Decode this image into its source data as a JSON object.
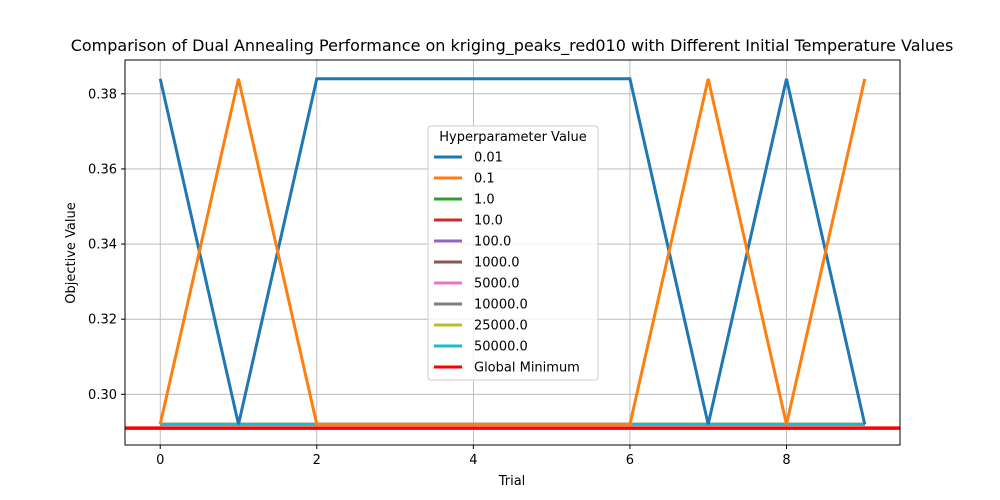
{
  "chart_data": {
    "type": "line",
    "title": "Comparison of Dual Annealing Performance on kriging_peaks_red010 with Different Initial Temperature Values",
    "xlabel": "Trial",
    "ylabel": "Objective Value",
    "xlim": [
      -0.45,
      9.45
    ],
    "ylim": [
      0.2865,
      0.389
    ],
    "xticks": [
      0,
      2,
      4,
      6,
      8
    ],
    "yticks": [
      0.3,
      0.32,
      0.34,
      0.36,
      0.38
    ],
    "ytick_labels": [
      "0.30",
      "0.32",
      "0.34",
      "0.36",
      "0.38"
    ],
    "grid": true,
    "legend_title": "Hyperparameter Value",
    "legend_position": "center",
    "x": [
      0,
      1,
      2,
      3,
      4,
      5,
      6,
      7,
      8,
      9
    ],
    "series": [
      {
        "name": "0.01",
        "color": "#1f77b4",
        "values": [
          0.384,
          0.292,
          0.384,
          0.384,
          0.384,
          0.384,
          0.384,
          0.292,
          0.384,
          0.292
        ]
      },
      {
        "name": "0.1",
        "color": "#ff7f0e",
        "values": [
          0.292,
          0.384,
          0.292,
          0.292,
          0.292,
          0.292,
          0.292,
          0.384,
          0.292,
          0.384
        ]
      },
      {
        "name": "1.0",
        "color": "#2ca02c",
        "values": [
          0.292,
          0.292,
          0.292,
          0.292,
          0.292,
          0.292,
          0.292,
          0.292,
          0.292,
          0.292
        ]
      },
      {
        "name": "10.0",
        "color": "#d62728",
        "values": [
          0.292,
          0.292,
          0.292,
          0.292,
          0.292,
          0.292,
          0.292,
          0.292,
          0.292,
          0.292
        ]
      },
      {
        "name": "100.0",
        "color": "#9467bd",
        "values": [
          0.292,
          0.292,
          0.292,
          0.292,
          0.292,
          0.292,
          0.292,
          0.292,
          0.292,
          0.292
        ]
      },
      {
        "name": "1000.0",
        "color": "#8c564b",
        "values": [
          0.292,
          0.292,
          0.292,
          0.292,
          0.292,
          0.292,
          0.292,
          0.292,
          0.292,
          0.292
        ]
      },
      {
        "name": "5000.0",
        "color": "#e377c2",
        "values": [
          0.292,
          0.292,
          0.292,
          0.292,
          0.292,
          0.292,
          0.292,
          0.292,
          0.292,
          0.292
        ]
      },
      {
        "name": "10000.0",
        "color": "#7f7f7f",
        "values": [
          0.292,
          0.292,
          0.292,
          0.292,
          0.292,
          0.292,
          0.292,
          0.292,
          0.292,
          0.292
        ]
      },
      {
        "name": "25000.0",
        "color": "#bcbd22",
        "values": [
          0.292,
          0.292,
          0.292,
          0.292,
          0.292,
          0.292,
          0.292,
          0.292,
          0.292,
          0.292
        ]
      },
      {
        "name": "50000.0",
        "color": "#17becf",
        "values": [
          0.292,
          0.292,
          0.292,
          0.292,
          0.292,
          0.292,
          0.292,
          0.292,
          0.292,
          0.292
        ]
      }
    ],
    "reference_line": {
      "name": "Global Minimum",
      "color": "#ff0000",
      "value": 0.291
    }
  }
}
